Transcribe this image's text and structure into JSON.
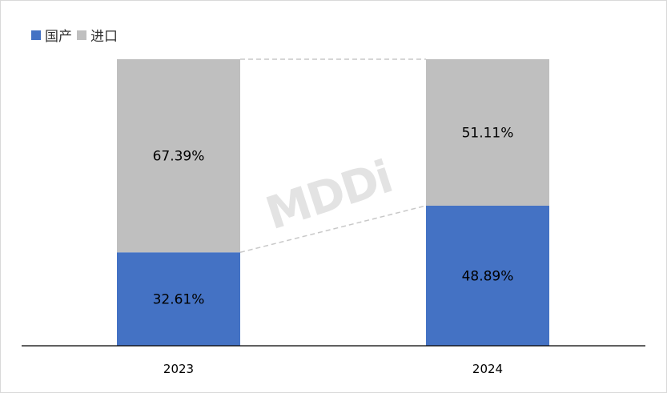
{
  "chart_data": {
    "type": "bar",
    "stacked": true,
    "percent": true,
    "categories": [
      "2023",
      "2024"
    ],
    "series": [
      {
        "name": "国产",
        "values": [
          32.61,
          48.89
        ],
        "labels": [
          "32.61%",
          "48.89%"
        ],
        "color": "#4472c4"
      },
      {
        "name": "进口",
        "values": [
          67.39,
          51.11
        ],
        "labels": [
          "67.39%",
          "51.11%"
        ],
        "color": "#bfbfbf"
      }
    ],
    "ylim": [
      0,
      100
    ],
    "legend_position": "top-left",
    "grid": false,
    "connector_lines": true,
    "watermark": "MDDi"
  }
}
